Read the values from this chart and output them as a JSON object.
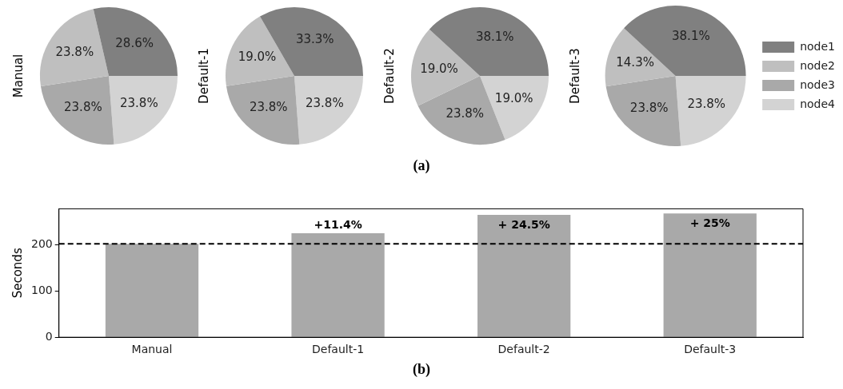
{
  "chart_data": [
    {
      "type": "pie",
      "ylabel": "Manual",
      "categories": [
        null,
        null,
        null,
        null
      ],
      "values": [
        28.6,
        23.8,
        23.8,
        23.8
      ],
      "colors": [
        "#808080",
        "#bfbfbf",
        "#a9a9a9",
        "#d3d3d3"
      ],
      "value_labels": [
        "28.6%",
        "23.8%",
        "23.8%",
        "23.8%"
      ],
      "annotations": [
        "(a)"
      ]
    },
    {
      "type": "pie",
      "ylabel": "Default-1",
      "categories": [
        null,
        null,
        null,
        null
      ],
      "values": [
        33.3,
        19.0,
        23.8,
        23.8
      ],
      "colors": [
        "#808080",
        "#bfbfbf",
        "#a9a9a9",
        "#d3d3d3"
      ],
      "value_labels": [
        "33.3%",
        "19.0%",
        "23.8%",
        "23.8%"
      ]
    },
    {
      "type": "pie",
      "ylabel": "Default-2",
      "categories": [
        null,
        null,
        null,
        null
      ],
      "values": [
        38.1,
        19.0,
        23.8,
        19.0
      ],
      "colors": [
        "#808080",
        "#bfbfbf",
        "#a9a9a9",
        "#d3d3d3"
      ],
      "value_labels": [
        "38.1%",
        "19.0%",
        "23.8%",
        "19.0%"
      ]
    },
    {
      "type": "pie",
      "ylabel": "Default-3",
      "categories": [
        "node1",
        "node2",
        "node3",
        "node4"
      ],
      "values": [
        38.1,
        14.3,
        23.8,
        23.8
      ],
      "colors": [
        "#808080",
        "#bfbfbf",
        "#a9a9a9",
        "#d3d3d3"
      ],
      "value_labels": [
        "38.1%",
        "14.3%",
        "23.8%",
        "23.8%"
      ],
      "legend": "right"
    },
    {
      "type": "bar",
      "ylabel": "Seconds",
      "categories": [
        "Manual",
        "Default-1",
        "Default-2",
        "Default-3"
      ],
      "values": [
        202,
        225,
        265,
        268
      ],
      "color": "#a9a9a9",
      "ylim": [
        0,
        278
      ],
      "yticks": [
        0,
        100,
        200
      ],
      "grid": false,
      "ref_lines": [
        {
          "axis": "y",
          "value": 202,
          "color": "#000000",
          "line_style": "dashed"
        }
      ],
      "annotations": [
        {
          "text": "+11.4%",
          "x": "Default-1",
          "y": 225
        },
        {
          "text": "+ 24.5%",
          "x": "Default-2",
          "y": 265
        },
        {
          "text": "+ 25%",
          "x": "Default-3",
          "y": 268
        },
        "(b)"
      ]
    }
  ]
}
